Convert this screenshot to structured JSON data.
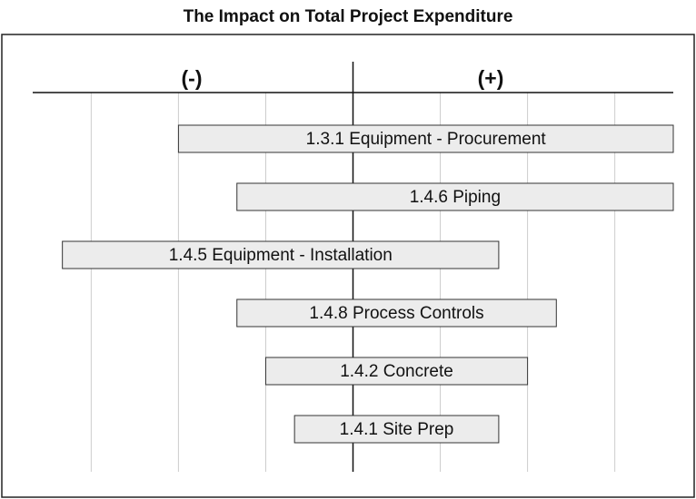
{
  "chart_data": {
    "type": "tornado",
    "title": "The Impact on Total Project Expenditure",
    "negative_label": "(-)",
    "positive_label": "(+)",
    "categories": [
      "1.3.1 Equipment - Procurement",
      "1.4.6 Piping",
      "1.4.5 Equipment - Installation",
      "1.4.8 Process Controls",
      "1.4.2 Concrete",
      "1.4.1 Site Prep"
    ],
    "low": [
      -2.0,
      -1.33,
      -3.33,
      -1.33,
      -1.0,
      -0.67
    ],
    "high": [
      3.67,
      3.67,
      1.67,
      2.33,
      2.0,
      1.67
    ],
    "color": "#ececec",
    "xlim": [
      -3.67,
      3.67
    ],
    "xticks": [
      -3,
      -2,
      -1,
      0,
      1,
      2,
      3
    ],
    "grid": true
  }
}
